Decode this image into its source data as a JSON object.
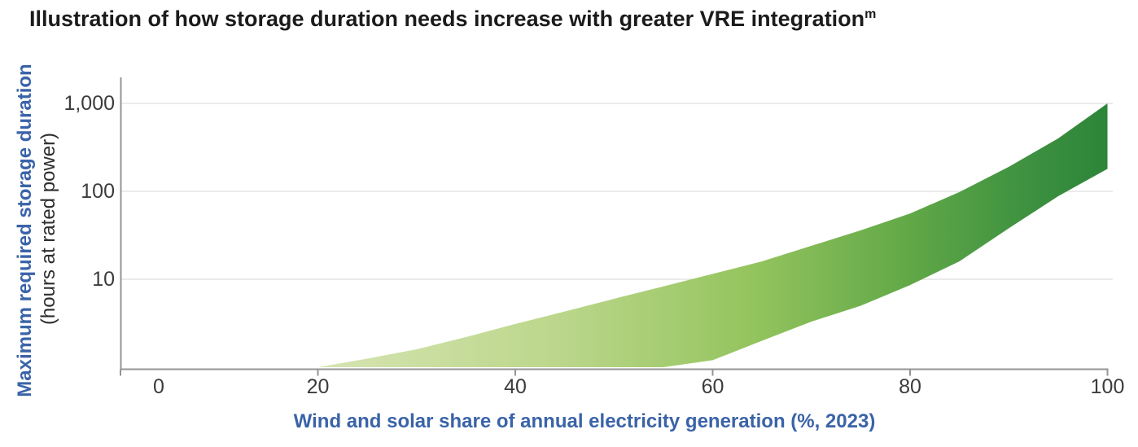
{
  "title": {
    "text": "Illustration of how storage duration needs increase with greater VRE integration",
    "superscript": "m"
  },
  "chart_data": {
    "type": "area",
    "subtype": "range-band",
    "title": "Illustration of how storage duration needs increase with greater VRE integration",
    "xlabel": "Wind and solar share of annual electricity generation (%, 2023)",
    "ylabel_line1": "Maximum required storage duration",
    "ylabel_line2": "(hours at rated power)",
    "y_scale": "log",
    "xlim": [
      0,
      100
    ],
    "ylim": [
      1,
      2000
    ],
    "grid": "horizontal-only",
    "legend": "none",
    "x_ticks": [
      0,
      20,
      40,
      60,
      80,
      100
    ],
    "y_ticks": [
      {
        "value": 1000,
        "label": "1,000"
      },
      {
        "value": 100,
        "label": "100"
      },
      {
        "value": 10,
        "label": "10"
      }
    ],
    "x": [
      20,
      25,
      30,
      35,
      40,
      45,
      50,
      55,
      60,
      65,
      70,
      75,
      80,
      85,
      90,
      95,
      100
    ],
    "series": [
      {
        "name": "band_high_hours",
        "values": [
          1.0,
          1.25,
          1.6,
          2.2,
          3.1,
          4.3,
          6.0,
          8.3,
          11.5,
          16,
          24,
          36,
          56,
          98,
          190,
          400,
          1000
        ]
      },
      {
        "name": "band_low_hours",
        "values": [
          1.0,
          1.0,
          1.0,
          1.0,
          1.0,
          1.0,
          1.0,
          1.0,
          1.2,
          2.0,
          3.3,
          5.0,
          8.6,
          16,
          38,
          88,
          180
        ]
      }
    ],
    "band_gradient": [
      {
        "offset": 0.0,
        "color": "#d6e4b2"
      },
      {
        "offset": 0.3,
        "color": "#bcd78c"
      },
      {
        "offset": 0.55,
        "color": "#94c45e"
      },
      {
        "offset": 0.75,
        "color": "#61a847"
      },
      {
        "offset": 0.9,
        "color": "#3d9140"
      },
      {
        "offset": 1.0,
        "color": "#2d8538"
      }
    ]
  },
  "colors": {
    "title_text": "#1b1b1b",
    "axis_title_blue": "#3a63a8",
    "tick_text": "#3c3c3c",
    "axis_line": "#949494",
    "gridline": "#ebebeb",
    "background": "#ffffff"
  }
}
